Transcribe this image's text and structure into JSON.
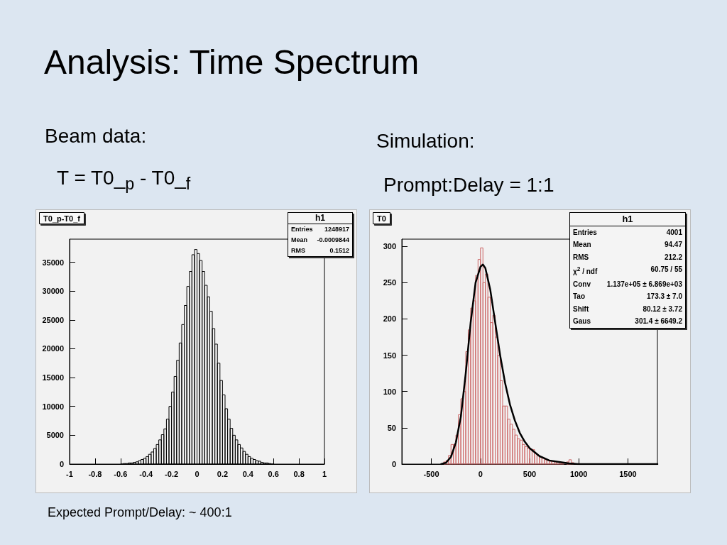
{
  "chart_data": [
    {
      "type": "histogram",
      "title": "T0_p-T0_f",
      "color": "#000000",
      "bins": [
        -0.6,
        -0.58,
        -0.56,
        -0.54,
        -0.52,
        -0.5,
        -0.48,
        -0.46,
        -0.44,
        -0.42,
        -0.4,
        -0.38,
        -0.36,
        -0.34,
        -0.32,
        -0.3,
        -0.28,
        -0.26,
        -0.24,
        -0.22,
        -0.2,
        -0.18,
        -0.16,
        -0.14,
        -0.12,
        -0.1,
        -0.08,
        -0.06,
        -0.04,
        -0.02,
        0,
        0.02,
        0.04,
        0.06,
        0.08,
        0.1,
        0.12,
        0.14,
        0.16,
        0.18,
        0.2,
        0.22,
        0.24,
        0.26,
        0.28,
        0.3,
        0.32,
        0.34,
        0.36,
        0.38,
        0.4,
        0.42,
        0.44,
        0.46,
        0.48,
        0.5,
        0.52,
        0.54,
        0.56,
        0.58,
        0.6
      ],
      "values": [
        0,
        100,
        100,
        200,
        200,
        300,
        400,
        600,
        800,
        1000,
        1300,
        1700,
        2100,
        2700,
        3400,
        4200,
        5100,
        6100,
        7800,
        10000,
        12500,
        15200,
        18000,
        21000,
        24200,
        27500,
        30800,
        33400,
        36300,
        37200,
        36500,
        35300,
        33400,
        31000,
        29000,
        26500,
        23500,
        20800,
        17500,
        14500,
        12000,
        9600,
        7800,
        6200,
        5000,
        4200,
        3400,
        2800,
        2200,
        1700,
        1300,
        1000,
        800,
        600,
        500,
        300,
        200,
        200,
        100,
        0
      ],
      "xlim": [
        -1,
        1
      ],
      "xticks": [
        -1,
        -0.8,
        -0.6,
        -0.4,
        -0.2,
        0,
        0.2,
        0.4,
        0.6,
        0.8,
        1
      ],
      "ylim": [
        0,
        39000
      ],
      "yticks": [
        0,
        5000,
        10000,
        15000,
        20000,
        25000,
        30000,
        35000
      ],
      "annotations": [
        "Analysis: Time Spectrum",
        "Beam data:",
        "T =  T0_$_{p}$  -  T0_$_{f}$",
        "Expected Prompt/Delay: ~ 400:1",
        "h1",
        "Entries",
        "1248917",
        "Mean",
        "-0.0009844",
        "RMS",
        "0.1512"
      ]
    },
    {
      "type": "histogram",
      "title": "T0",
      "bins": [
        -400,
        -375,
        -350,
        -325,
        -300,
        -275,
        -250,
        -225,
        -200,
        -175,
        -150,
        -125,
        -100,
        -75,
        -50,
        -25,
        0,
        25,
        50,
        75,
        100,
        125,
        150,
        175,
        200,
        225,
        250,
        275,
        300,
        325,
        350,
        375,
        400,
        425,
        450,
        475,
        500,
        525,
        550,
        575,
        600,
        625,
        650,
        675,
        700,
        725,
        750,
        775,
        800,
        825,
        850,
        875,
        900,
        925,
        950,
        975,
        1000
      ],
      "series": [
        {
          "color": "#cc6666",
          "values": [
            null,
            3,
            5,
            12,
            27,
            27,
            40,
            68,
            90,
            100,
            155,
            185,
            215,
            225,
            260,
            282,
            298,
            250,
            262,
            230,
            195,
            205,
            175,
            150,
            115,
            80,
            80,
            62,
            55,
            48,
            40,
            35,
            33,
            27,
            24,
            22,
            21,
            20,
            15,
            12,
            10,
            8,
            6,
            5,
            4,
            4,
            3,
            3,
            2,
            2,
            null,
            3,
            6,
            2,
            null,
            null
          ]
        },
        {
          "type": "line",
          "color": "#000000",
          "x": [
            -400,
            -350,
            -300,
            -250,
            -200,
            -150,
            -100,
            -50,
            0,
            25,
            50,
            100,
            150,
            200,
            250,
            300,
            350,
            400,
            450,
            500,
            600,
            700,
            800,
            900,
            1000,
            1200,
            1800
          ],
          "values": [
            0,
            2,
            10,
            30,
            65,
            125,
            195,
            250,
            272,
            275,
            270,
            240,
            195,
            150,
            112,
            82,
            60,
            43,
            31,
            22,
            11,
            5,
            3,
            1,
            0,
            0,
            0
          ]
        }
      ],
      "xlim": [
        -800,
        1800
      ],
      "xticks": [
        -500,
        0,
        500,
        1000,
        1500
      ],
      "ylim": [
        0,
        310
      ],
      "yticks": [
        0,
        50,
        100,
        150,
        200,
        250,
        300
      ],
      "annotations": [
        "Simulation:",
        "Prompt:Delay = 1:1",
        "h1",
        "Entries",
        "4001",
        "Mean",
        "94.47",
        "RMS",
        "212.2",
        "χ$^{2}$ / ndf",
        "60.75 / 55",
        "Conv",
        "1.137e+05 ± 6.869e+03",
        "Tao",
        "173.3 ± 7.0",
        "Shift",
        "80.12 ± 3.72",
        "Gaus",
        "301.4 ± 6649.2"
      ]
    }
  ]
}
